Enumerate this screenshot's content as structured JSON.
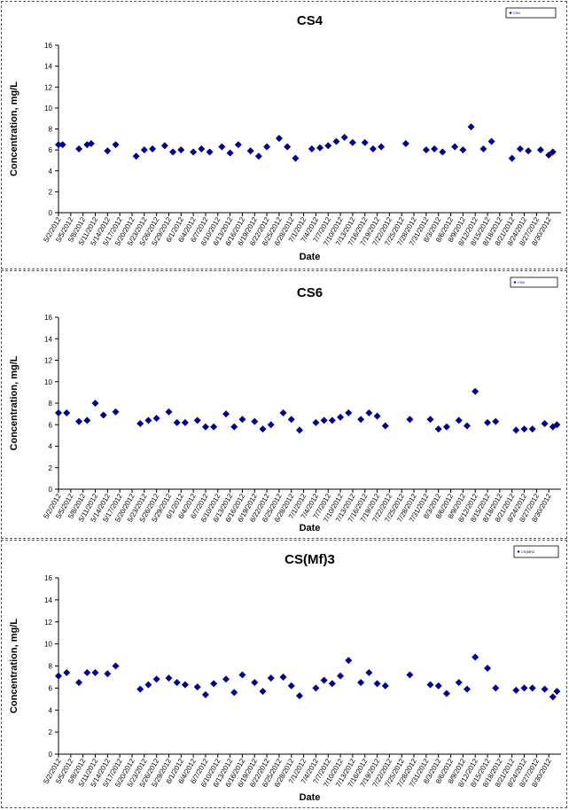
{
  "chart_data": [
    {
      "type": "scatter",
      "title": "CS4",
      "xlabel": "Date",
      "ylabel": "Concentration, mg/L",
      "ylim": [
        0,
        16
      ],
      "yticks": [
        "0",
        "2",
        "4",
        "6",
        "8",
        "10",
        "12",
        "14",
        "16"
      ],
      "legend": {
        "label": "CS4",
        "placement": "top-right"
      },
      "grid": false,
      "color": "#00008B",
      "xticks": [
        "5/2/2012",
        "5/5/2012",
        "5/8/2012",
        "5/11/2012",
        "5/14/2012",
        "5/17/2012",
        "5/20/2012",
        "5/23/2012",
        "5/26/2012",
        "5/29/2012",
        "6/1/2012",
        "6/4/2012",
        "6/7/2012",
        "6/10/2012",
        "6/13/2012",
        "6/16/2012",
        "6/19/2012",
        "6/22/2012",
        "6/25/2012",
        "6/28/2012",
        "7/1/2012",
        "7/4/2012",
        "7/7/2012",
        "7/10/2012",
        "7/13/2012",
        "7/16/2012",
        "7/19/2012",
        "7/22/2012",
        "7/25/2012",
        "7/28/2012",
        "7/31/2012",
        "8/3/2012",
        "8/6/2012",
        "8/9/2012",
        "8/12/2012",
        "8/15/2012",
        "8/18/2012",
        "8/21/2012",
        "8/24/2012",
        "8/27/2012",
        "8/30/2012"
      ],
      "series": [
        {
          "x": [
            "5/2/2012",
            "5/3/2012",
            "5/7/2012",
            "5/9/2012",
            "5/10/2012",
            "5/14/2012",
            "5/16/2012",
            "5/21/2012",
            "5/23/2012",
            "5/25/2012",
            "5/28/2012",
            "5/30/2012",
            "6/1/2012",
            "6/4/2012",
            "6/6/2012",
            "6/8/2012",
            "6/11/2012",
            "6/13/2012",
            "6/15/2012",
            "6/18/2012",
            "6/20/2012",
            "6/22/2012",
            "6/25/2012",
            "6/27/2012",
            "6/29/2012",
            "7/3/2012",
            "7/5/2012",
            "7/7/2012",
            "7/9/2012",
            "7/11/2012",
            "7/13/2012",
            "7/16/2012",
            "7/18/2012",
            "7/20/2012",
            "7/26/2012",
            "7/31/2012",
            "8/2/2012",
            "8/4/2012",
            "8/7/2012",
            "8/9/2012",
            "8/11/2012",
            "8/14/2012",
            "8/16/2012",
            "8/21/2012",
            "8/23/2012",
            "8/25/2012",
            "8/28/2012",
            "8/30/2012",
            "8/31/2012"
          ],
          "y": [
            6.5,
            6.5,
            6.1,
            6.5,
            6.6,
            5.9,
            6.5,
            5.4,
            6.0,
            6.1,
            6.4,
            5.8,
            6.0,
            5.8,
            6.1,
            5.8,
            6.3,
            5.7,
            6.5,
            5.9,
            5.4,
            6.3,
            7.1,
            6.3,
            5.2,
            6.1,
            6.2,
            6.4,
            6.8,
            7.2,
            6.7,
            6.7,
            6.1,
            6.3,
            6.6,
            6.0,
            6.1,
            5.8,
            6.3,
            6.0,
            8.2,
            6.1,
            6.8,
            5.2,
            6.1,
            5.9,
            6.0,
            5.5,
            5.8
          ]
        }
      ]
    },
    {
      "type": "scatter",
      "title": "CS6",
      "xlabel": "Date",
      "ylabel": "Concentration, mg/L",
      "ylim": [
        0,
        16
      ],
      "yticks": [
        "0",
        "2",
        "4",
        "6",
        "8",
        "10",
        "12",
        "14",
        "16"
      ],
      "legend": {
        "label": "CS6",
        "placement": "top-right"
      },
      "grid": false,
      "color": "#00008B",
      "xticks": [
        "5/2/2012",
        "5/5/2012",
        "5/8/2012",
        "5/11/2012",
        "5/14/2012",
        "5/17/2012",
        "5/20/2012",
        "5/23/2012",
        "5/26/2012",
        "5/29/2012",
        "6/1/2012",
        "6/4/2012",
        "6/7/2012",
        "6/10/2012",
        "6/13/2012",
        "6/16/2012",
        "6/19/2012",
        "6/22/2012",
        "6/25/2012",
        "6/28/2012",
        "7/1/2012",
        "7/4/2012",
        "7/7/2012",
        "7/10/2012",
        "7/13/2012",
        "7/16/2012",
        "7/19/2012",
        "7/22/2012",
        "7/25/2012",
        "7/28/2012",
        "7/31/2012",
        "8/3/2012",
        "8/6/2012",
        "8/9/2012",
        "8/12/2012",
        "8/15/2012",
        "8/18/2012",
        "8/21/2012",
        "8/24/2012",
        "8/27/2012",
        "8/30/2012"
      ],
      "series": [
        {
          "x": [
            "5/2/2012",
            "5/4/2012",
            "5/7/2012",
            "5/9/2012",
            "5/11/2012",
            "5/13/2012",
            "5/16/2012",
            "5/22/2012",
            "5/24/2012",
            "5/26/2012",
            "5/29/2012",
            "5/31/2012",
            "6/2/2012",
            "6/5/2012",
            "6/7/2012",
            "6/9/2012",
            "6/12/2012",
            "6/14/2012",
            "6/16/2012",
            "6/19/2012",
            "6/21/2012",
            "6/23/2012",
            "6/26/2012",
            "6/28/2012",
            "6/30/2012",
            "7/4/2012",
            "7/6/2012",
            "7/8/2012",
            "7/10/2012",
            "7/12/2012",
            "7/15/2012",
            "7/17/2012",
            "7/19/2012",
            "7/21/2012",
            "7/27/2012",
            "8/1/2012",
            "8/3/2012",
            "8/5/2012",
            "8/8/2012",
            "8/10/2012",
            "8/12/2012",
            "8/15/2012",
            "8/17/2012",
            "8/22/2012",
            "8/24/2012",
            "8/26/2012",
            "8/29/2012",
            "8/31/2012",
            "9/1/2012"
          ],
          "y": [
            7.1,
            7.1,
            6.3,
            6.4,
            8.0,
            6.9,
            7.2,
            6.1,
            6.4,
            6.6,
            7.2,
            6.2,
            6.2,
            6.4,
            5.8,
            5.8,
            7.0,
            5.8,
            6.5,
            6.3,
            5.6,
            6.0,
            7.1,
            6.5,
            5.5,
            6.2,
            6.4,
            6.4,
            6.7,
            7.1,
            6.5,
            7.1,
            6.8,
            5.9,
            6.5,
            6.5,
            5.6,
            5.8,
            6.4,
            5.9,
            9.1,
            6.2,
            6.3,
            5.5,
            5.6,
            5.6,
            6.1,
            5.8,
            6.0
          ]
        }
      ]
    },
    {
      "type": "scatter",
      "title": "CS(Mf)3",
      "xlabel": "Date",
      "ylabel": "Concentration, mg/L",
      "ylim": [
        0,
        16
      ],
      "yticks": [
        "0",
        "2",
        "4",
        "6",
        "8",
        "10",
        "12",
        "14",
        "16"
      ],
      "legend": {
        "label": "CS(Mf)3",
        "placement": "top-right"
      },
      "grid": false,
      "color": "#00008B",
      "xticks": [
        "5/2/2012",
        "5/5/2012",
        "5/8/2012",
        "5/11/2012",
        "5/14/2012",
        "5/17/2012",
        "5/20/2012",
        "5/23/2012",
        "5/26/2012",
        "5/29/2012",
        "6/1/2012",
        "6/4/2012",
        "6/7/2012",
        "6/10/2012",
        "6/13/2012",
        "6/16/2012",
        "6/19/2012",
        "6/22/2012",
        "6/25/2012",
        "6/28/2012",
        "7/1/2012",
        "7/4/2012",
        "7/7/2012",
        "7/10/2012",
        "7/13/2012",
        "7/16/2012",
        "7/19/2012",
        "7/22/2012",
        "7/25/2012",
        "7/28/2012",
        "7/31/2012",
        "8/3/2012",
        "8/6/2012",
        "8/9/2012",
        "8/12/2012",
        "8/15/2012",
        "8/18/2012",
        "8/21/2012",
        "8/24/2012",
        "8/27/2012",
        "8/30/2012"
      ],
      "series": [
        {
          "x": [
            "5/2/2012",
            "5/4/2012",
            "5/7/2012",
            "5/9/2012",
            "5/11/2012",
            "5/14/2012",
            "5/16/2012",
            "5/22/2012",
            "5/24/2012",
            "5/26/2012",
            "5/29/2012",
            "5/31/2012",
            "6/2/2012",
            "6/5/2012",
            "6/7/2012",
            "6/9/2012",
            "6/12/2012",
            "6/14/2012",
            "6/16/2012",
            "6/19/2012",
            "6/21/2012",
            "6/23/2012",
            "6/26/2012",
            "6/28/2012",
            "6/30/2012",
            "7/4/2012",
            "7/6/2012",
            "7/8/2012",
            "7/10/2012",
            "7/12/2012",
            "7/15/2012",
            "7/17/2012",
            "7/19/2012",
            "7/21/2012",
            "7/27/2012",
            "8/1/2012",
            "8/3/2012",
            "8/5/2012",
            "8/8/2012",
            "8/10/2012",
            "8/12/2012",
            "8/15/2012",
            "8/17/2012",
            "8/22/2012",
            "8/24/2012",
            "8/26/2012",
            "8/29/2012",
            "8/31/2012",
            "9/1/2012"
          ],
          "y": [
            7.1,
            7.4,
            6.5,
            7.4,
            7.4,
            7.3,
            8.0,
            5.9,
            6.3,
            6.8,
            6.9,
            6.5,
            6.3,
            6.1,
            5.4,
            6.4,
            6.8,
            5.6,
            7.2,
            6.5,
            5.7,
            6.9,
            7.0,
            6.2,
            5.3,
            6.0,
            6.7,
            6.4,
            7.1,
            8.5,
            6.5,
            7.4,
            6.4,
            6.2,
            7.2,
            6.3,
            6.2,
            5.5,
            6.5,
            5.9,
            8.8,
            7.8,
            6.0,
            5.8,
            6.0,
            6.0,
            5.9,
            5.2,
            5.7
          ]
        }
      ]
    }
  ]
}
